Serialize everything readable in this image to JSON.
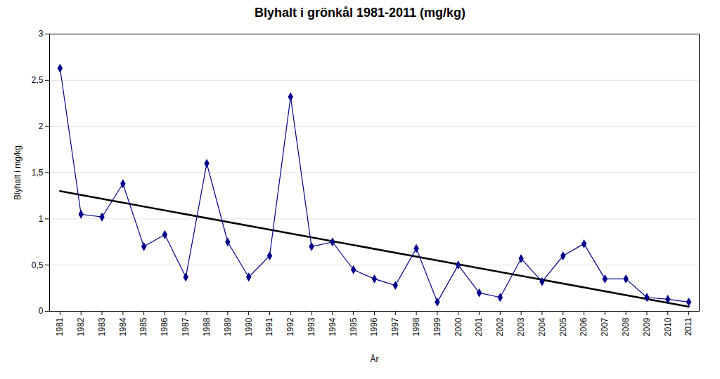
{
  "chart_data": {
    "type": "line",
    "title": "Blyhalt i grönkål 1981-2011 (mg/kg)",
    "xlabel": "År",
    "ylabel": "Blyhalt i mg/kg",
    "x": [
      1981,
      1982,
      1983,
      1984,
      1985,
      1986,
      1987,
      1988,
      1989,
      1990,
      1991,
      1992,
      1993,
      1994,
      1995,
      1996,
      1997,
      1998,
      1999,
      2000,
      2001,
      2002,
      2003,
      2004,
      2005,
      2006,
      2007,
      2008,
      2009,
      2010,
      2011
    ],
    "values": [
      2.63,
      1.05,
      1.02,
      1.38,
      0.7,
      0.83,
      0.37,
      1.6,
      0.75,
      0.37,
      0.6,
      2.32,
      0.7,
      0.75,
      0.45,
      0.35,
      0.28,
      0.68,
      0.1,
      0.5,
      0.2,
      0.15,
      0.57,
      0.32,
      0.6,
      0.73,
      0.35,
      0.35,
      0.15,
      0.13,
      0.1
    ],
    "color": "#00008B",
    "marker": "diamond",
    "trend": {
      "x": [
        1981,
        2011
      ],
      "values": [
        1.3,
        0.05
      ],
      "color": "#000000"
    },
    "xlim": [
      1980.5,
      2011.5
    ],
    "xticks": [
      1981,
      1982,
      1983,
      1984,
      1985,
      1986,
      1987,
      1988,
      1989,
      1990,
      1991,
      1992,
      1993,
      1994,
      1995,
      1996,
      1997,
      1998,
      1999,
      2000,
      2001,
      2002,
      2003,
      2004,
      2005,
      2006,
      2007,
      2008,
      2009,
      2010,
      2011
    ],
    "ylim": [
      0,
      3
    ],
    "yticks": [
      0,
      {
        "value": 0.5,
        "label": "0,5"
      },
      1,
      {
        "value": 1.5,
        "label": "1,5"
      },
      2,
      {
        "value": 2.5,
        "label": "2,5"
      },
      3
    ],
    "grid": true
  }
}
